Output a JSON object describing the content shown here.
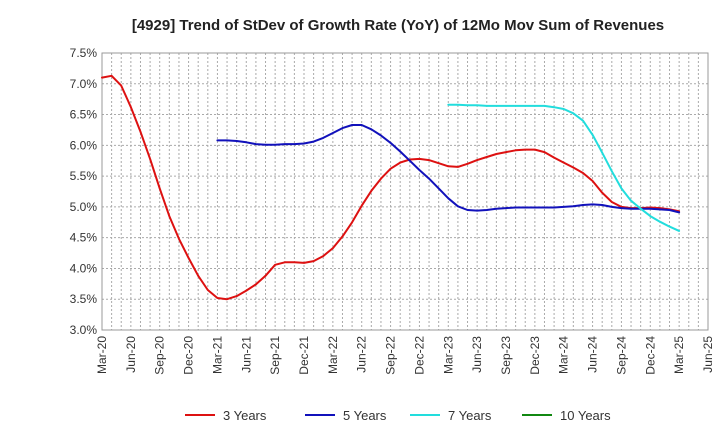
{
  "chart_data": {
    "type": "line",
    "title": "[4929]  Trend of StDev of Growth Rate (YoY) of 12Mo Mov Sum of Revenues",
    "xlabel": "",
    "ylabel": "",
    "ylim": [
      3.0,
      7.5
    ],
    "yticks": [
      "3.0%",
      "3.5%",
      "4.0%",
      "4.5%",
      "5.0%",
      "5.5%",
      "6.0%",
      "6.5%",
      "7.0%",
      "7.5%"
    ],
    "ytick_values": [
      3.0,
      3.5,
      4.0,
      4.5,
      5.0,
      5.5,
      6.0,
      6.5,
      7.0,
      7.5
    ],
    "xticks": [
      "Mar-20",
      "Jun-20",
      "Sep-20",
      "Dec-20",
      "Mar-21",
      "Jun-21",
      "Sep-21",
      "Dec-21",
      "Mar-22",
      "Jun-22",
      "Sep-22",
      "Dec-22",
      "Mar-23",
      "Jun-23",
      "Sep-23",
      "Dec-23",
      "Mar-24",
      "Jun-24",
      "Sep-24",
      "Dec-24",
      "Mar-25",
      "Jun-25"
    ],
    "x_month_range": [
      0,
      63
    ],
    "grid": true,
    "legend_position": "bottom",
    "series": [
      {
        "name": "3 Years",
        "color": "#dd1111",
        "points": [
          [
            0,
            7.1
          ],
          [
            1,
            7.13
          ],
          [
            2,
            6.97
          ],
          [
            3,
            6.62
          ],
          [
            4,
            6.22
          ],
          [
            5,
            5.78
          ],
          [
            6,
            5.3
          ],
          [
            7,
            4.85
          ],
          [
            8,
            4.48
          ],
          [
            9,
            4.17
          ],
          [
            10,
            3.88
          ],
          [
            11,
            3.65
          ],
          [
            12,
            3.52
          ],
          [
            13,
            3.5
          ],
          [
            14,
            3.55
          ],
          [
            15,
            3.64
          ],
          [
            16,
            3.74
          ],
          [
            17,
            3.88
          ],
          [
            18,
            4.06
          ],
          [
            19,
            4.1
          ],
          [
            20,
            4.1
          ],
          [
            21,
            4.09
          ],
          [
            22,
            4.12
          ],
          [
            23,
            4.2
          ],
          [
            24,
            4.33
          ],
          [
            25,
            4.52
          ],
          [
            26,
            4.75
          ],
          [
            27,
            5.02
          ],
          [
            28,
            5.26
          ],
          [
            29,
            5.46
          ],
          [
            30,
            5.62
          ],
          [
            31,
            5.72
          ],
          [
            32,
            5.77
          ],
          [
            33,
            5.78
          ],
          [
            34,
            5.76
          ],
          [
            35,
            5.71
          ],
          [
            36,
            5.66
          ],
          [
            37,
            5.65
          ],
          [
            38,
            5.7
          ],
          [
            39,
            5.76
          ],
          [
            40,
            5.81
          ],
          [
            41,
            5.86
          ],
          [
            42,
            5.89
          ],
          [
            43,
            5.92
          ],
          [
            44,
            5.93
          ],
          [
            45,
            5.93
          ],
          [
            46,
            5.89
          ],
          [
            47,
            5.8
          ],
          [
            48,
            5.72
          ],
          [
            49,
            5.64
          ],
          [
            50,
            5.55
          ],
          [
            51,
            5.42
          ],
          [
            52,
            5.23
          ],
          [
            53,
            5.08
          ],
          [
            54,
            5.0
          ],
          [
            55,
            4.98
          ],
          [
            56,
            4.98
          ],
          [
            57,
            4.99
          ],
          [
            58,
            4.98
          ],
          [
            59,
            4.96
          ],
          [
            60,
            4.93
          ]
        ]
      },
      {
        "name": "5 Years",
        "color": "#1111bb",
        "points": [
          [
            12,
            6.08
          ],
          [
            13,
            6.08
          ],
          [
            14,
            6.07
          ],
          [
            15,
            6.05
          ],
          [
            16,
            6.02
          ],
          [
            17,
            6.01
          ],
          [
            18,
            6.01
          ],
          [
            19,
            6.02
          ],
          [
            20,
            6.02
          ],
          [
            21,
            6.03
          ],
          [
            22,
            6.06
          ],
          [
            23,
            6.12
          ],
          [
            24,
            6.2
          ],
          [
            25,
            6.28
          ],
          [
            26,
            6.33
          ],
          [
            27,
            6.33
          ],
          [
            28,
            6.26
          ],
          [
            29,
            6.16
          ],
          [
            30,
            6.04
          ],
          [
            31,
            5.9
          ],
          [
            32,
            5.75
          ],
          [
            33,
            5.6
          ],
          [
            34,
            5.46
          ],
          [
            35,
            5.3
          ],
          [
            36,
            5.14
          ],
          [
            37,
            5.01
          ],
          [
            38,
            4.95
          ],
          [
            39,
            4.94
          ],
          [
            40,
            4.95
          ],
          [
            41,
            4.97
          ],
          [
            42,
            4.98
          ],
          [
            43,
            4.99
          ],
          [
            44,
            4.99
          ],
          [
            45,
            4.99
          ],
          [
            46,
            4.99
          ],
          [
            47,
            4.99
          ],
          [
            48,
            5.0
          ],
          [
            49,
            5.01
          ],
          [
            50,
            5.03
          ],
          [
            51,
            5.04
          ],
          [
            52,
            5.03
          ],
          [
            53,
            5.0
          ],
          [
            54,
            4.98
          ],
          [
            55,
            4.97
          ],
          [
            56,
            4.97
          ],
          [
            57,
            4.97
          ],
          [
            58,
            4.96
          ],
          [
            59,
            4.95
          ],
          [
            60,
            4.91
          ]
        ]
      },
      {
        "name": "7 Years",
        "color": "#22dddd",
        "points": [
          [
            36,
            6.66
          ],
          [
            37,
            6.66
          ],
          [
            38,
            6.65
          ],
          [
            39,
            6.65
          ],
          [
            40,
            6.64
          ],
          [
            41,
            6.64
          ],
          [
            42,
            6.64
          ],
          [
            43,
            6.64
          ],
          [
            44,
            6.64
          ],
          [
            45,
            6.64
          ],
          [
            46,
            6.64
          ],
          [
            47,
            6.62
          ],
          [
            48,
            6.59
          ],
          [
            49,
            6.52
          ],
          [
            50,
            6.4
          ],
          [
            51,
            6.17
          ],
          [
            52,
            5.88
          ],
          [
            53,
            5.58
          ],
          [
            54,
            5.3
          ],
          [
            55,
            5.1
          ],
          [
            56,
            4.97
          ],
          [
            57,
            4.85
          ],
          [
            58,
            4.76
          ],
          [
            59,
            4.68
          ],
          [
            60,
            4.61
          ]
        ]
      },
      {
        "name": "10 Years",
        "color": "#118811",
        "points": []
      }
    ]
  }
}
